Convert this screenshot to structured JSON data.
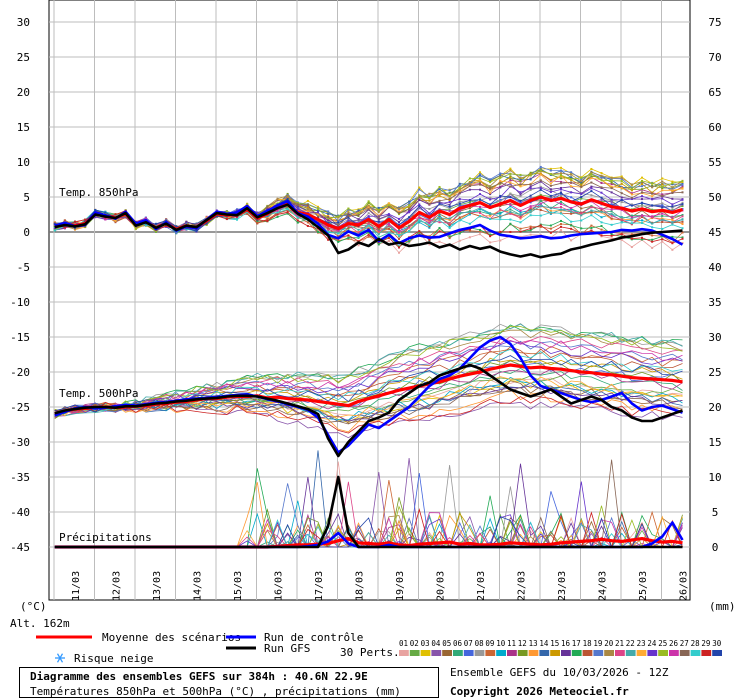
{
  "chart_data": {
    "type": "line",
    "title": "Diagramme des ensembles GEFS sur 384h : 40.6N 22.9E",
    "subtitle": "Températures 850hPa et 500hPa (°C) , précipitations (mm)",
    "left_axis": {
      "unit": "(°C)",
      "ticks": [
        30,
        25,
        20,
        15,
        10,
        5,
        0,
        -5,
        -10,
        -15,
        -20,
        -25,
        -30,
        -35,
        -40,
        -45
      ],
      "ylim": [
        -50,
        32
      ]
    },
    "right_axis": {
      "unit": "(mm)",
      "ticks": [
        75,
        70,
        65,
        60,
        55,
        50,
        45,
        40,
        35,
        30,
        25,
        20,
        15,
        10,
        5,
        0
      ],
      "ylim": [
        -3,
        79
      ]
    },
    "altitude": "Alt. 162m",
    "x_labels": [
      "11/03",
      "12/03",
      "13/03",
      "14/03",
      "15/03",
      "16/03",
      "17/03",
      "18/03",
      "19/03",
      "20/03",
      "21/03",
      "22/03",
      "23/03",
      "24/03",
      "25/03",
      "26/03"
    ],
    "x_start": "10/03 12Z",
    "x_step_hours": 6,
    "section_labels": {
      "t850": "Temp. 850hPa",
      "t500": "Temp. 500hPa",
      "precip": "Précipitations"
    },
    "series": [
      {
        "name": "Moyenne des scénarios",
        "color": "#ff0000",
        "field": "t850",
        "values": [
          0.8,
          1.1,
          0.9,
          1.2,
          2.6,
          2.3,
          2.0,
          2.6,
          1.0,
          1.5,
          0.6,
          1.3,
          0.4,
          0.9,
          0.6,
          1.6,
          2.6,
          2.4,
          2.5,
          3.3,
          2.0,
          2.6,
          3.5,
          4.0,
          2.8,
          2.5,
          1.8,
          1.0,
          0.5,
          1.2,
          1.0,
          1.8,
          0.8,
          1.8,
          0.6,
          1.5,
          2.8,
          2.1,
          3.0,
          2.5,
          3.4,
          3.8,
          4.2,
          3.5,
          4.0,
          4.5,
          3.8,
          4.5,
          5.0,
          4.5,
          4.8,
          4.3,
          4.0,
          4.6,
          4.1,
          3.6,
          3.4,
          3.0,
          3.3,
          2.9,
          3.1,
          2.8,
          3.2
        ]
      },
      {
        "name": "Run de contrôle",
        "color": "#0000ff",
        "field": "t850",
        "values": [
          0.9,
          1.3,
          0.8,
          1.0,
          2.8,
          2.4,
          1.9,
          2.9,
          1.2,
          1.7,
          0.4,
          1.4,
          0.2,
          0.8,
          0.5,
          1.8,
          2.9,
          2.6,
          2.8,
          3.7,
          2.3,
          3.0,
          3.8,
          4.4,
          2.7,
          2.2,
          1.2,
          -0.4,
          -0.9,
          0.1,
          -0.5,
          0.3,
          -1.3,
          -0.4,
          -1.6,
          -0.9,
          -0.5,
          -0.8,
          -0.7,
          -0.2,
          0.3,
          0.6,
          1.0,
          0.2,
          -0.4,
          -0.6,
          -0.9,
          -0.8,
          -0.6,
          -0.9,
          -0.8,
          -0.5,
          -0.3,
          -0.2,
          -0.1,
          0.0,
          0.3,
          0.2,
          0.4,
          0.2,
          -0.4,
          -1.0,
          -1.8
        ]
      },
      {
        "name": "Run GFS",
        "color": "#000000",
        "field": "t850",
        "values": [
          0.7,
          1.0,
          0.8,
          1.1,
          2.5,
          2.2,
          2.0,
          2.7,
          0.9,
          1.4,
          0.6,
          1.2,
          0.3,
          0.9,
          0.7,
          1.7,
          2.7,
          2.5,
          2.4,
          3.4,
          2.1,
          2.7,
          3.4,
          3.9,
          2.6,
          1.8,
          0.7,
          -0.5,
          -3.0,
          -2.5,
          -1.5,
          -2.0,
          -1.0,
          -1.8,
          -1.5,
          -2.0,
          -1.8,
          -1.5,
          -2.2,
          -1.8,
          -2.5,
          -2.0,
          -2.4,
          -2.1,
          -2.8,
          -3.2,
          -3.5,
          -3.2,
          -3.6,
          -3.3,
          -3.1,
          -2.5,
          -2.2,
          -1.8,
          -1.5,
          -1.2,
          -0.8,
          -0.6,
          -0.3,
          -0.1,
          0.0,
          0.1,
          0.2
        ]
      },
      {
        "name": "Moyenne des scénarios",
        "color": "#ff0000",
        "field": "t500",
        "values": [
          -26.0,
          -25.6,
          -25.3,
          -25.2,
          -25.1,
          -25.0,
          -25.1,
          -25.0,
          -24.9,
          -24.8,
          -24.6,
          -24.5,
          -24.3,
          -24.2,
          -24.0,
          -23.8,
          -23.8,
          -23.6,
          -23.5,
          -23.5,
          -23.4,
          -23.7,
          -23.6,
          -23.8,
          -23.9,
          -24.0,
          -24.2,
          -24.4,
          -24.6,
          -24.8,
          -24.2,
          -23.8,
          -23.4,
          -23.0,
          -22.6,
          -22.3,
          -22.0,
          -21.7,
          -21.4,
          -21.0,
          -20.6,
          -20.3,
          -20.0,
          -19.6,
          -19.3,
          -19.0,
          -19.2,
          -19.4,
          -19.3,
          -19.5,
          -19.6,
          -19.8,
          -20.0,
          -20.1,
          -20.3,
          -20.4,
          -20.6,
          -20.8,
          -20.9,
          -21.0,
          -21.1,
          -21.2,
          -21.4
        ]
      },
      {
        "name": "Run de contrôle",
        "color": "#0000ff",
        "field": "t500",
        "values": [
          -26.2,
          -25.7,
          -25.2,
          -25.0,
          -25.2,
          -25.1,
          -24.9,
          -24.7,
          -24.8,
          -24.6,
          -24.4,
          -24.3,
          -24.1,
          -23.9,
          -23.8,
          -23.7,
          -23.6,
          -23.4,
          -23.3,
          -23.2,
          -23.5,
          -23.9,
          -24.2,
          -24.6,
          -25.0,
          -25.4,
          -26.5,
          -29.0,
          -31.5,
          -30.5,
          -29.0,
          -27.5,
          -28.0,
          -27.0,
          -26.0,
          -25.0,
          -23.5,
          -22.0,
          -21.0,
          -20.5,
          -19.5,
          -18.0,
          -16.5,
          -15.5,
          -15.0,
          -16.0,
          -18.0,
          -20.5,
          -22.0,
          -22.5,
          -23.0,
          -23.5,
          -24.0,
          -24.3,
          -24.0,
          -23.5,
          -23.0,
          -24.5,
          -25.5,
          -25.0,
          -24.8,
          -25.3,
          -25.8
        ]
      },
      {
        "name": "Run GFS",
        "color": "#000000",
        "field": "t500",
        "values": [
          -25.9,
          -25.5,
          -25.3,
          -25.1,
          -25.0,
          -25.0,
          -25.1,
          -24.9,
          -24.9,
          -24.7,
          -24.5,
          -24.4,
          -24.2,
          -24.1,
          -23.9,
          -23.8,
          -23.7,
          -23.5,
          -23.4,
          -23.4,
          -23.5,
          -23.8,
          -24.1,
          -24.5,
          -24.9,
          -25.3,
          -26.0,
          -29.5,
          -32.0,
          -30.0,
          -28.5,
          -27.0,
          -26.5,
          -25.8,
          -24.0,
          -23.0,
          -22.0,
          -21.5,
          -20.5,
          -20.0,
          -19.5,
          -19.0,
          -19.5,
          -20.5,
          -21.5,
          -22.5,
          -23.0,
          -23.5,
          -23.0,
          -22.5,
          -23.5,
          -24.5,
          -24.0,
          -23.5,
          -24.0,
          -25.0,
          -25.5,
          -26.5,
          -27.0,
          -27.0,
          -26.5,
          -26.0,
          -25.5
        ]
      },
      {
        "name": "Moyenne des scénarios",
        "color": "#ff0000",
        "field": "precip",
        "values": [
          0,
          0,
          0,
          0,
          0,
          0,
          0,
          0,
          0,
          0,
          0,
          0,
          0,
          0,
          0,
          0,
          0,
          0,
          0,
          0,
          0,
          0,
          0.1,
          0.2,
          0.3,
          0.3,
          0.4,
          0.5,
          0.9,
          1.2,
          0.6,
          0.5,
          0.4,
          0.6,
          0.3,
          0.2,
          0.4,
          0.5,
          0.6,
          0.7,
          0.4,
          0.5,
          0.3,
          0.3,
          0.4,
          0.6,
          0.5,
          0.4,
          0.3,
          0.4,
          0.6,
          0.7,
          0.8,
          0.9,
          1.1,
          0.9,
          0.8,
          1.0,
          1.2,
          0.9,
          0.7,
          0.8,
          0.6
        ]
      },
      {
        "name": "Run de contrôle",
        "color": "#0000ff",
        "field": "precip",
        "values": [
          0,
          0,
          0,
          0,
          0,
          0,
          0,
          0,
          0,
          0,
          0,
          0,
          0,
          0,
          0,
          0,
          0,
          0,
          0,
          0,
          0,
          0,
          0,
          0,
          0,
          0.1,
          0.3,
          0.8,
          2.0,
          0.5,
          0,
          0,
          0,
          0.3,
          0,
          0,
          0,
          0,
          0,
          0,
          0,
          0,
          0,
          0,
          0,
          0,
          0,
          0,
          0,
          0,
          0,
          0,
          0,
          0,
          0,
          0,
          0,
          0,
          0,
          0.5,
          1.5,
          3.5,
          1.0
        ]
      },
      {
        "name": "Run GFS",
        "color": "#000000",
        "field": "precip",
        "values": [
          0,
          0,
          0,
          0,
          0,
          0,
          0,
          0,
          0,
          0,
          0,
          0,
          0,
          0,
          0,
          0,
          0,
          0,
          0,
          0,
          0,
          0,
          0,
          0,
          0,
          0,
          0,
          3.0,
          10.0,
          2.0,
          0,
          0,
          0,
          0,
          0,
          0,
          0,
          0,
          0,
          0,
          0,
          0,
          0,
          0,
          0,
          0,
          0,
          0,
          0,
          0,
          0,
          0,
          0,
          0,
          0,
          0,
          0,
          0,
          0,
          0,
          0,
          0,
          0
        ]
      }
    ],
    "perturbations": {
      "label": "30 Perts.",
      "ids": [
        "01",
        "02",
        "03",
        "04",
        "05",
        "06",
        "07",
        "08",
        "09",
        "10",
        "11",
        "12",
        "13",
        "14",
        "15",
        "16",
        "17",
        "18",
        "19",
        "20",
        "21",
        "22",
        "23",
        "24",
        "25",
        "26",
        "27",
        "28",
        "29",
        "30"
      ],
      "colors": [
        "#e8a3a0",
        "#66aa44",
        "#e0c000",
        "#8855aa",
        "#996633",
        "#33aa77",
        "#4466dd",
        "#999999",
        "#cc6633",
        "#00aacc",
        "#aa3388",
        "#779922",
        "#ff9933",
        "#3366aa",
        "#cc9900",
        "#663399",
        "#22aa55",
        "#bb5533",
        "#5577cc",
        "#aa8844",
        "#dd4488",
        "#44aaaa",
        "#ffaa33",
        "#6633cc",
        "#99bb22",
        "#cc33aa",
        "#886655",
        "#33cccc",
        "#cc2222",
        "#2244aa"
      ]
    },
    "legend": [
      {
        "label": "Moyenne des scénarios",
        "color": "#ff0000"
      },
      {
        "label": "Run de contrôle",
        "color": "#0000ff"
      },
      {
        "label": "Run GFS",
        "color": "#000000"
      }
    ],
    "snow_label": "Risque neige",
    "snow_icon": "snowflake-icon",
    "grid": true
  },
  "footer": {
    "title": "Diagramme des ensembles GEFS sur 384h : 40.6N 22.9E",
    "subtitle": "Températures 850hPa et 500hPa (°C) , précipitations (mm)",
    "run_info": "Ensemble GEFS du 10/03/2026 - 12Z",
    "copyright": "Copyright 2026 Meteociel.fr"
  }
}
